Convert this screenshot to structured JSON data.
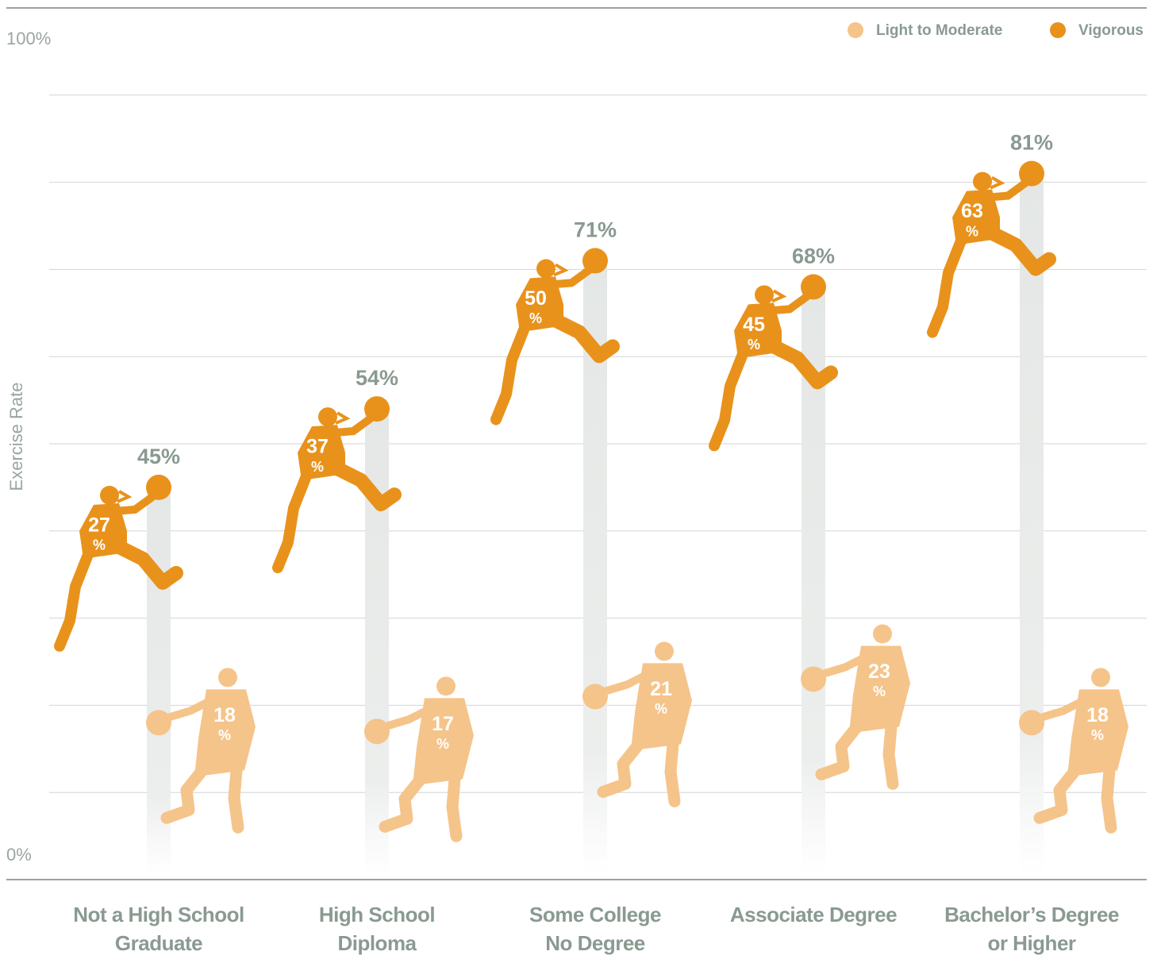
{
  "chart_data": {
    "type": "pictorial-stacked",
    "y_axis_label": "Exercise Rate",
    "categories": [
      "Not a High School\nGraduate",
      "High School\nDiploma",
      "Some College\nNo Degree",
      "Associate Degree",
      "Bachelor’s Degree\nor Higher"
    ],
    "series": [
      {
        "name": "Light to Moderate",
        "color": "#f5c48a",
        "values": [
          18,
          17,
          21,
          23,
          18
        ],
        "value_labels": [
          [
            "18",
            "%"
          ],
          [
            "17",
            "%"
          ],
          [
            "21",
            "%"
          ],
          [
            "23",
            "%"
          ],
          [
            "18",
            "%"
          ]
        ]
      },
      {
        "name": "Vigorous",
        "color": "#e8921c",
        "values": [
          27,
          37,
          50,
          45,
          63
        ],
        "value_labels": [
          [
            "27",
            "%"
          ],
          [
            "37",
            "%"
          ],
          [
            "50",
            "%"
          ],
          [
            "45",
            "%"
          ],
          [
            "63",
            "%"
          ]
        ]
      }
    ],
    "totals": [
      45,
      54,
      71,
      68,
      81
    ],
    "total_labels": [
      "45%",
      "54%",
      "71%",
      "68%",
      "81%"
    ],
    "ylim": [
      0,
      100
    ],
    "yticks": [
      {
        "value": 0,
        "label": "0%"
      },
      10,
      20,
      30,
      40,
      50,
      60,
      70,
      80,
      90,
      {
        "value": 100,
        "label": "100%"
      }
    ],
    "grid": true,
    "legend_position": "top-right"
  }
}
